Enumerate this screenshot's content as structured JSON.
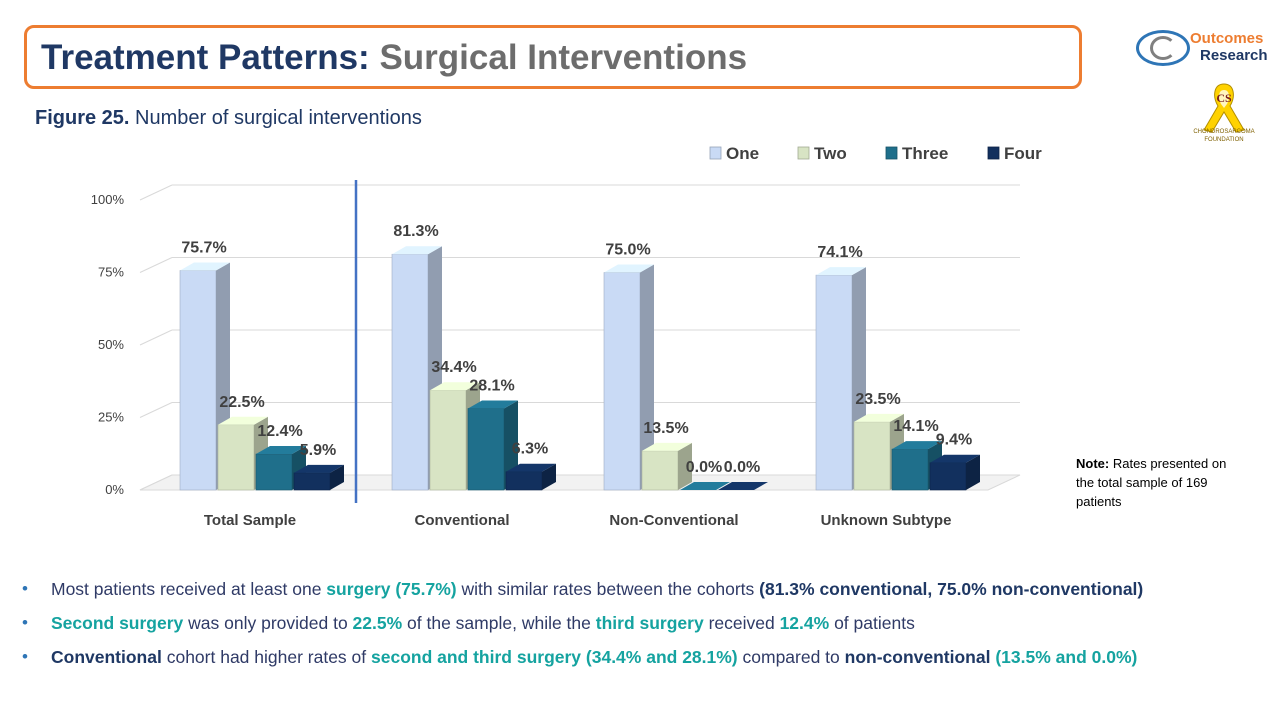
{
  "title": {
    "main": "Treatment Patterns:",
    "sub": "Surgical Interventions"
  },
  "logo": {
    "line1": "Outcomes",
    "line2": "Research"
  },
  "ribbon": {
    "letters": "CS",
    "caption": "CHONDROSARCOMA FOUNDATION"
  },
  "figure": {
    "label": "Figure 25.",
    "caption": "Number of surgical interventions"
  },
  "note": {
    "label": "Note:",
    "text": "Rates presented on the total sample of 169 patients"
  },
  "colors": {
    "one": "#c9daf5",
    "two": "#d8e4c4",
    "three": "#1f6f8b",
    "four": "#12305e",
    "title_border": "#ed7d31",
    "teal": "#15a3a0",
    "navy": "#1f3864"
  },
  "chart_data": {
    "type": "bar",
    "title": "",
    "xlabel": "",
    "ylabel": "",
    "ylim": [
      0,
      100
    ],
    "yticks": [
      "0%",
      "25%",
      "50%",
      "75%",
      "100%"
    ],
    "categories": [
      "Total Sample",
      "Conventional",
      "Non-Conventional",
      "Unknown Subtype"
    ],
    "series": [
      {
        "name": "One",
        "values": [
          75.7,
          81.3,
          75.0,
          74.1
        ],
        "labels": [
          "75.7%",
          "81.3%",
          "75.0%",
          "74.1%"
        ]
      },
      {
        "name": "Two",
        "values": [
          22.5,
          34.4,
          13.5,
          23.5
        ],
        "labels": [
          "22.5%",
          "34.4%",
          "13.5%",
          "23.5%"
        ]
      },
      {
        "name": "Three",
        "values": [
          12.4,
          28.1,
          0.0,
          14.1
        ],
        "labels": [
          "12.4%",
          "28.1%",
          "0.0%",
          "14.1%"
        ]
      },
      {
        "name": "Four",
        "values": [
          5.9,
          6.3,
          0.0,
          9.4
        ],
        "labels": [
          "5.9%",
          "6.3%",
          "0.0%",
          "9.4%"
        ]
      }
    ],
    "legend_position": "top-right",
    "grid": true
  },
  "bullets": [
    [
      {
        "t": "Most patients received at least one ",
        "s": ""
      },
      {
        "t": "surgery (75.7%)",
        "s": "teal"
      },
      {
        "t": " with similar rates between the cohorts ",
        "s": ""
      },
      {
        "t": "(81.3% conventional, 75.0% non-conventional)",
        "s": "navy"
      }
    ],
    [
      {
        "t": "Second surgery",
        "s": "teal"
      },
      {
        "t": " was only provided to ",
        "s": ""
      },
      {
        "t": "22.5%",
        "s": "teal"
      },
      {
        "t": " of the sample, while the ",
        "s": ""
      },
      {
        "t": "third surgery",
        "s": "teal"
      },
      {
        "t": " received ",
        "s": ""
      },
      {
        "t": "12.4%",
        "s": "teal"
      },
      {
        "t": " of patients",
        "s": ""
      }
    ],
    [
      {
        "t": "Conventional",
        "s": "navy"
      },
      {
        "t": " cohort had higher rates of ",
        "s": ""
      },
      {
        "t": "second and third surgery (34.4% and 28.1%)",
        "s": "teal"
      },
      {
        "t": " compared to ",
        "s": ""
      },
      {
        "t": "non-conventional",
        "s": "navy"
      },
      {
        "t": " (13.5% and 0.0%)",
        "s": "teal"
      }
    ]
  ]
}
